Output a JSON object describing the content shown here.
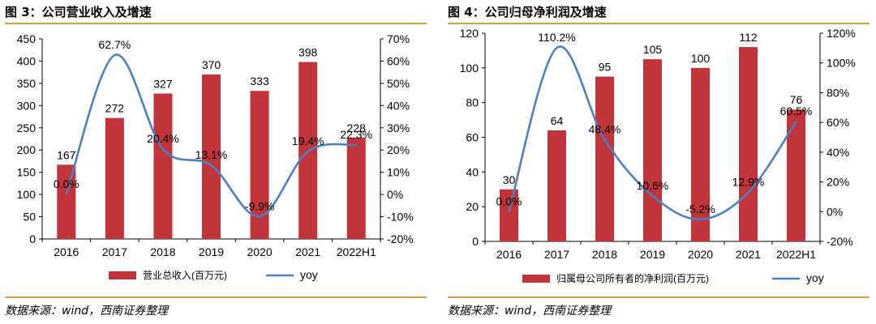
{
  "colors": {
    "bar": "#c0343a",
    "line": "#4f7fbf",
    "rule": "#c9a24a",
    "axis": "#000000"
  },
  "panels": [
    {
      "title": "图 3：公司营业收入及增速",
      "source": "数据来源：wind，西南证券整理"
    },
    {
      "title": "图 4：公司归母净利润及增速",
      "source": "数据来源：wind，西南证券整理"
    }
  ],
  "chart_data": [
    {
      "type": "bar",
      "title": "图 3：公司营业收入及增速",
      "categories": [
        "2016",
        "2017",
        "2018",
        "2019",
        "2020",
        "2021",
        "2022H1"
      ],
      "series": [
        {
          "name": "营业总收入(百万元)",
          "type": "bar",
          "axis": "left",
          "values": [
            167,
            272,
            327,
            370,
            333,
            398,
            228
          ],
          "labels": [
            "167",
            "272",
            "327",
            "370",
            "333",
            "398",
            "228"
          ]
        },
        {
          "name": "yoy",
          "type": "line",
          "axis": "right",
          "values": [
            0.0,
            62.7,
            20.4,
            13.1,
            -9.9,
            19.4,
            22.3
          ],
          "labels": [
            "0.0%",
            "62.7%",
            "20.4%",
            "13.1%",
            "-9.9%",
            "19.4%",
            "22.3%"
          ]
        }
      ],
      "y_left": {
        "min": 0,
        "max": 450,
        "step": 50,
        "ticks": [
          "0",
          "50",
          "100",
          "150",
          "200",
          "250",
          "300",
          "350",
          "400",
          "450"
        ]
      },
      "y_right": {
        "min": -20,
        "max": 70,
        "step": 10,
        "ticks": [
          "-20%",
          "-10%",
          "0%",
          "10%",
          "20%",
          "30%",
          "40%",
          "50%",
          "60%",
          "70%"
        ]
      },
      "legend": {
        "position": "bottom",
        "bar_label": "营业总收入(百万元)",
        "line_label": "yoy"
      },
      "grid": false
    },
    {
      "type": "bar",
      "title": "图 4：公司归母净利润及增速",
      "categories": [
        "2016",
        "2017",
        "2018",
        "2019",
        "2020",
        "2021",
        "2022H1"
      ],
      "series": [
        {
          "name": "归属母公司所有者的净利润(百万元)",
          "type": "bar",
          "axis": "left",
          "values": [
            30,
            64,
            95,
            105,
            100,
            112,
            76
          ],
          "labels": [
            "30",
            "64",
            "95",
            "105",
            "100",
            "112",
            "76"
          ]
        },
        {
          "name": "yoy",
          "type": "line",
          "axis": "right",
          "values": [
            0.0,
            110.2,
            48.4,
            10.6,
            -5.2,
            12.9,
            60.5
          ],
          "labels": [
            "0.0%",
            "110.2%",
            "48.4%",
            "10.6%",
            "-5.2%",
            "12.9%",
            "60.5%"
          ]
        }
      ],
      "y_left": {
        "min": 0,
        "max": 120,
        "step": 20,
        "ticks": [
          "0",
          "20",
          "40",
          "60",
          "80",
          "100",
          "120"
        ]
      },
      "y_right": {
        "min": -20,
        "max": 120,
        "step": 20,
        "ticks": [
          "-20%",
          "0%",
          "20%",
          "40%",
          "60%",
          "80%",
          "100%",
          "120%"
        ]
      },
      "legend": {
        "position": "bottom",
        "bar_label": "归属母公司所有者的净利润(百万元)",
        "line_label": "yoy"
      },
      "grid": false
    }
  ]
}
